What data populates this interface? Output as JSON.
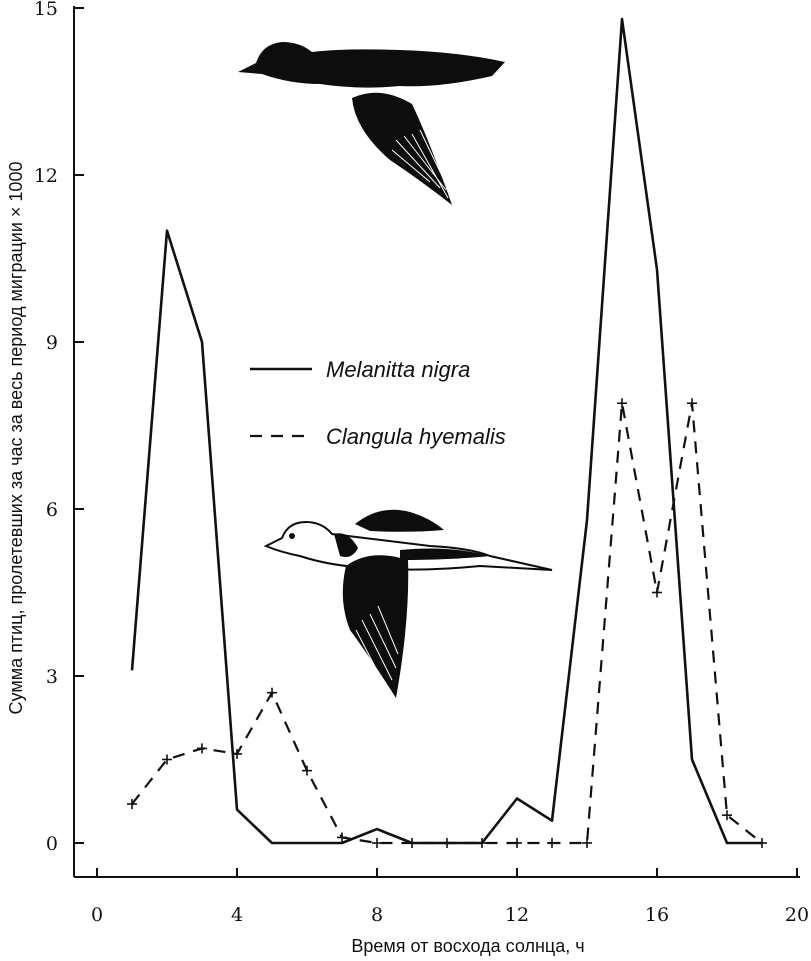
{
  "chart_data": {
    "type": "line",
    "xlabel": "Время от восхода солнца, ч",
    "ylabel": "Сумма птиц, пролетевших за час за весь период миграции × 1000",
    "xlim": [
      -1,
      20
    ],
    "ylim": [
      0,
      15
    ],
    "xticks": [
      0,
      4,
      8,
      12,
      16,
      20
    ],
    "yticks": [
      0,
      3,
      6,
      9,
      12,
      15
    ],
    "grid": false,
    "legend_position": "center-left",
    "series": [
      {
        "name": "Melanitta nigra",
        "style": "solid",
        "x": [
          1,
          2,
          3,
          4,
          5,
          6,
          7,
          8,
          9,
          10,
          11,
          12,
          13,
          14,
          15,
          16,
          17,
          18,
          19
        ],
        "y": [
          3.1,
          11.0,
          9.0,
          0.6,
          0.0,
          0.0,
          0.0,
          0.25,
          0.0,
          0.0,
          0.0,
          0.8,
          0.4,
          5.8,
          14.8,
          10.3,
          1.5,
          0.0,
          0.0
        ]
      },
      {
        "name": "Clangula hyemalis",
        "style": "dashed",
        "x": [
          1,
          2,
          3,
          4,
          5,
          6,
          7,
          8,
          9,
          10,
          11,
          12,
          13,
          14,
          15,
          16,
          17,
          18,
          19
        ],
        "y": [
          0.7,
          1.5,
          1.7,
          1.6,
          2.7,
          1.3,
          0.1,
          0.0,
          0.0,
          0.0,
          0.0,
          0.0,
          0.0,
          0.0,
          7.9,
          4.5,
          7.9,
          0.5,
          0.0
        ]
      }
    ]
  }
}
